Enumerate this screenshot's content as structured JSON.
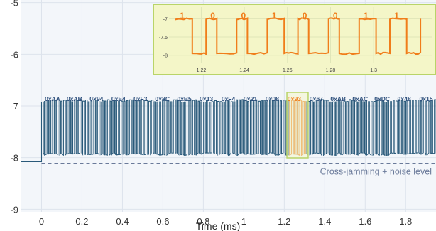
{
  "chart_data": {
    "type": "line",
    "xlabel": "Time (ms)",
    "ylabel": "",
    "xlim": [
      -0.1,
      1.95
    ],
    "ylim": [
      -9.05,
      -4.95
    ],
    "x_ticks": [
      "0",
      "0.2",
      "0.4",
      "0.6",
      "0.8",
      "1",
      "1.2",
      "1.4",
      "1.6",
      "1.8"
    ],
    "x_tick_values": [
      0,
      0.2,
      0.4,
      0.6,
      0.8,
      1.0,
      1.2,
      1.4,
      1.6,
      1.8
    ],
    "y_ticks": [
      "-5",
      "-6",
      "-7",
      "-8",
      "-9"
    ],
    "y_tick_values": [
      -5,
      -6,
      -7,
      -8,
      -9
    ],
    "grid": true,
    "signal": {
      "high_level": -6.9,
      "low_level": -7.93,
      "idle_level": -8.08,
      "start_time": 0.0,
      "bits_per_byte": 8
    },
    "byte_labels": [
      "0xAA",
      "0xAB",
      "0×94",
      "0xE4",
      "0xF3",
      "0×8C",
      "0xB5",
      "0×13",
      "0xF4",
      "0×21",
      "0×08",
      "0×93",
      "0×67",
      "0xAB",
      "0xAC",
      "0xDC",
      "0×48",
      "0×15"
    ],
    "byte_values": [
      "AA",
      "AB",
      "94",
      "E4",
      "F3",
      "8C",
      "B5",
      "13",
      "F4",
      "21",
      "08",
      "93",
      "67",
      "AB",
      "AC",
      "DC",
      "48",
      "15"
    ],
    "highlighted_byte_index": 11,
    "highlight_window": [
      1.213,
      1.318
    ],
    "threshold": {
      "value": -8.12,
      "label": "Cross-jamming + noise level"
    },
    "inset": {
      "xlim": [
        1.207,
        1.325
      ],
      "ylim": [
        -8.22,
        -6.72
      ],
      "x_ticks": [
        "1.22",
        "1.24",
        "1.26",
        "1.28",
        "1.3"
      ],
      "x_tick_values": [
        1.22,
        1.24,
        1.26,
        1.28,
        1.3
      ],
      "y_ticks": [
        "-7",
        "-7.5",
        "-8"
      ],
      "y_tick_values": [
        -7,
        -7.5,
        -8
      ],
      "bits": [
        "1",
        "0",
        "0",
        "1",
        "0",
        "0",
        "1",
        "1"
      ],
      "bit_times": [
        1.215,
        1.233,
        1.25,
        1.268,
        1.285,
        1.302,
        1.318
      ]
    },
    "colors": {
      "signal": "#2a5a7a",
      "highlight": "#f07d1a",
      "highlight_fill": "#f4f6c8",
      "highlight_border": "#b9d468",
      "label": "#2d4f7c",
      "threshold": "#6a7a9a",
      "plot_bg": "#f3f6fa",
      "grid": "#dde3ec"
    }
  }
}
